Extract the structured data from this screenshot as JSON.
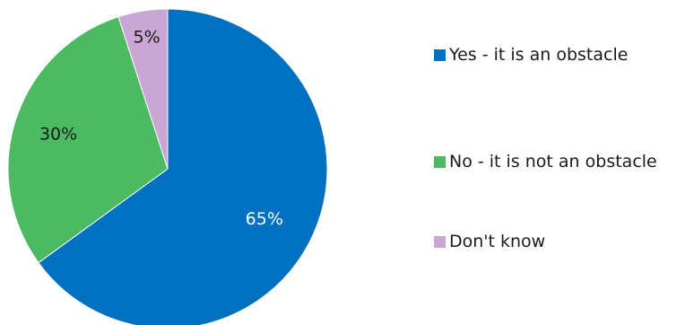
{
  "chart_data": {
    "type": "pie",
    "categories": [
      "Yes - it is an obstacle",
      "No - it is not an obstacle",
      "Don't know"
    ],
    "values": [
      65,
      30,
      5
    ],
    "labels": [
      "65%",
      "30%",
      "5%"
    ],
    "colors": [
      "#0070c0",
      "#4cb963",
      "#c9a6d3"
    ],
    "label_colors": [
      "#ffffff",
      "#1a1a1a",
      "#1a1a1a"
    ],
    "legend_position": "right",
    "title": ""
  }
}
